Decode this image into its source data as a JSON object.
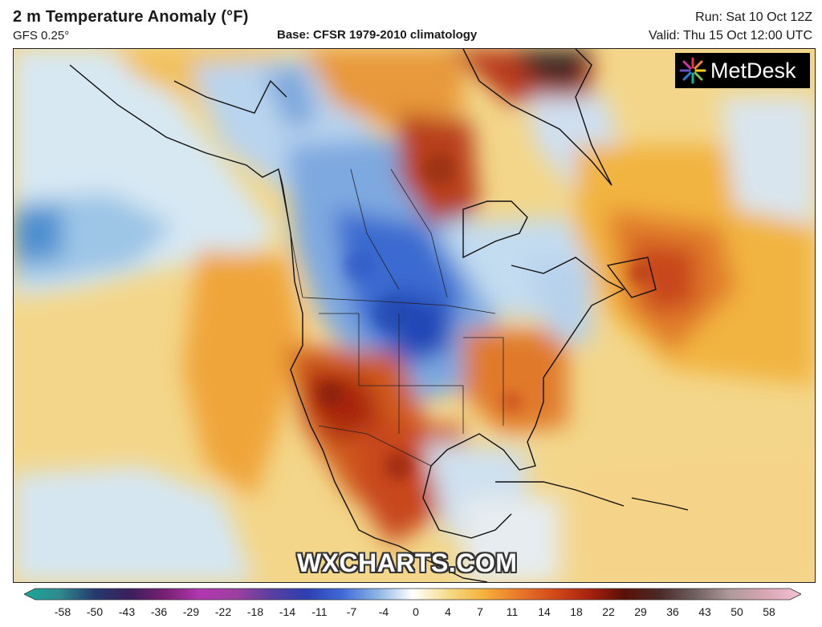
{
  "header": {
    "title": "2 m Temperature Anomaly (°F)",
    "subtitle": "GFS 0.25°",
    "base": "Base: CFSR 1979-2010 climatology",
    "run": "Run: Sat 10 Oct 12Z",
    "valid": "Valid: Thu 15 Oct 12:00 UTC"
  },
  "logo": {
    "text": "MetDesk"
  },
  "watermark": "WXCHARTS.COM",
  "legend": {
    "ticks": [
      "-58",
      "-50",
      "-43",
      "-36",
      "-29",
      "-22",
      "-18",
      "-14",
      "-11",
      "-7",
      "-4",
      "0",
      "4",
      "7",
      "11",
      "14",
      "18",
      "22",
      "29",
      "36",
      "43",
      "50",
      "58"
    ],
    "colors": [
      "#1aa89a",
      "#2f8a8f",
      "#243a6e",
      "#3b1f5c",
      "#7a1f74",
      "#b238b0",
      "#9d3fa0",
      "#5a3fa0",
      "#2d3fb0",
      "#3f6ad6",
      "#8ab4e4",
      "#ffffff",
      "#f5dc8a",
      "#f5b23c",
      "#e9782a",
      "#d24a1a",
      "#a8220f",
      "#5a1008",
      "#4a2a28",
      "#706060",
      "#b09a9a",
      "#d9a6b4",
      "#f3c2d6"
    ]
  },
  "colors": {
    "ocean_warm": "#f5d26e",
    "ocean_cold": "#cfe3f0",
    "cold_anomaly": "#2a5cc8",
    "warm_anomaly": "#c83a14",
    "hot_anomaly": "#8a1a0a"
  }
}
